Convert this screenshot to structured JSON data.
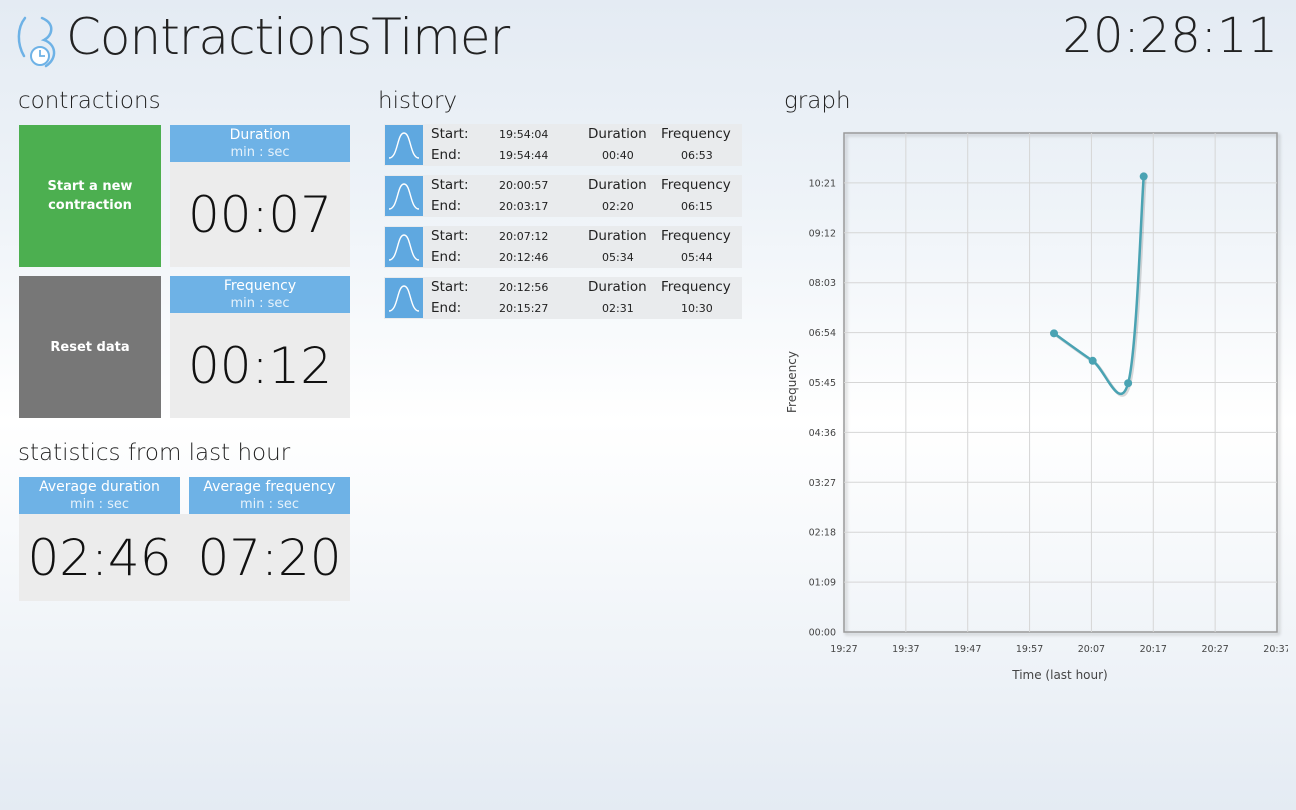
{
  "app": {
    "title": "ContractionsTimer",
    "clock": "20:28:11"
  },
  "sections": {
    "contractions": "contractions",
    "history": "history",
    "graph": "graph",
    "statistics": "statistics from last hour"
  },
  "buttons": {
    "start_new": "Start a new contraction",
    "reset": "Reset data",
    "start_color": "#4caf50",
    "reset_color": "#777777"
  },
  "current": {
    "duration": {
      "title": "Duration",
      "unit": "min : sec",
      "value": "00:07"
    },
    "frequency": {
      "title": "Frequency",
      "unit": "min : sec",
      "value": "00:12"
    }
  },
  "statistics": {
    "avg_duration": {
      "title": "Average duration",
      "unit": "min : sec",
      "value": "02:46"
    },
    "avg_frequency": {
      "title": "Average frequency",
      "unit": "min : sec",
      "value": "07:20"
    }
  },
  "history": {
    "labels": {
      "start": "Start:",
      "end": "End:",
      "duration": "Duration",
      "frequency": "Frequency"
    },
    "rows": [
      {
        "start": "19:54:04",
        "end": "19:54:44",
        "duration": "00:40",
        "frequency": "06:53"
      },
      {
        "start": "20:00:57",
        "end": "20:03:17",
        "duration": "02:20",
        "frequency": "06:15"
      },
      {
        "start": "20:07:12",
        "end": "20:12:46",
        "duration": "05:34",
        "frequency": "05:44"
      },
      {
        "start": "20:12:56",
        "end": "20:15:27",
        "duration": "02:31",
        "frequency": "10:30"
      }
    ]
  },
  "colors": {
    "accent": "#6eb2e6",
    "line": "#4aa3b3",
    "icon": "#5fa8e0"
  },
  "chart_data": {
    "type": "line",
    "xlabel": "Time (last hour)",
    "ylabel": "Frequency",
    "x_ticks": [
      "19:27",
      "19:37",
      "19:47",
      "19:57",
      "20:07",
      "20:17",
      "20:27",
      "20:37"
    ],
    "y_ticks": [
      "00:00",
      "01:09",
      "02:18",
      "03:27",
      "04:36",
      "05:45",
      "06:54",
      "08:03",
      "09:12",
      "10:21"
    ],
    "xlim_minutes": [
      0,
      70
    ],
    "ylim_seconds": [
      0,
      690
    ],
    "grid": true,
    "series": [
      {
        "points": [
          {
            "x": "20:00:57",
            "y": "06:53"
          },
          {
            "x": "20:07:12",
            "y": "06:15"
          },
          {
            "x": "20:12:56",
            "y": "05:44"
          },
          {
            "x": "20:15:27",
            "y": "10:30"
          }
        ]
      }
    ]
  }
}
